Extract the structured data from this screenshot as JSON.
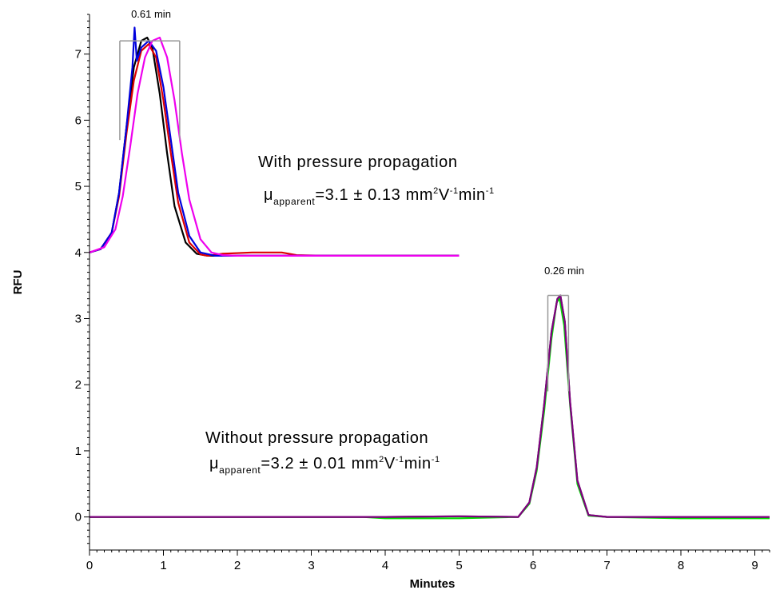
{
  "chart_data": {
    "type": "line",
    "xlabel": "Minutes",
    "ylabel": "RFU",
    "xlim": [
      0,
      9.2
    ],
    "ylim": [
      -0.5,
      7.6
    ],
    "x_ticks": [
      0,
      1,
      2,
      3,
      4,
      5,
      6,
      7,
      8,
      9
    ],
    "y_ticks": [
      0,
      1,
      2,
      3,
      4,
      5,
      6,
      7
    ],
    "grid": false,
    "legend": "none",
    "annotations": {
      "upper_title": "With pressure propagation",
      "upper_mu": "μ",
      "upper_mu_sub": "apparent",
      "upper_eq": "=3.1 ± 0.13 mm",
      "upper_sup1": "2",
      "upper_v": "V",
      "upper_sup2": "-1",
      "upper_min": "min",
      "upper_sup3": "-1",
      "upper_width_label": "0.61 min",
      "lower_title": "Without pressure propagation",
      "lower_mu": "μ",
      "lower_mu_sub": "apparent",
      "lower_eq": "=3.2 ± 0.01 mm",
      "lower_sup1": "2",
      "lower_v": "V",
      "lower_sup2": "-1",
      "lower_min": "min",
      "lower_sup3": "-1",
      "lower_width_label": "0.26 min"
    },
    "brackets": [
      {
        "x_start": 0.41,
        "x_end": 1.22,
        "y": 7.2,
        "y_bottom": 5.7
      },
      {
        "x_start": 6.2,
        "x_end": 6.48,
        "y": 3.35,
        "y_bottom": 1.9
      }
    ],
    "series": [
      {
        "group": "upper",
        "color": "#000000",
        "x": [
          0,
          0.15,
          0.3,
          0.4,
          0.5,
          0.6,
          0.7,
          0.78,
          0.85,
          0.95,
          1.05,
          1.15,
          1.3,
          1.45,
          1.6,
          2.0,
          3.0,
          4.0,
          5.0
        ],
        "y": [
          4.0,
          4.05,
          4.3,
          4.9,
          5.9,
          6.8,
          7.2,
          7.25,
          7.1,
          6.4,
          5.5,
          4.7,
          4.15,
          3.98,
          3.95,
          3.95,
          3.95,
          3.95,
          3.95
        ]
      },
      {
        "group": "upper",
        "color": "#dd0000",
        "x": [
          0,
          0.15,
          0.3,
          0.4,
          0.5,
          0.6,
          0.7,
          0.8,
          0.9,
          1.0,
          1.1,
          1.2,
          1.35,
          1.5,
          1.6,
          1.8,
          2.2,
          2.6,
          2.8,
          3.2,
          4.0,
          5.0
        ],
        "y": [
          4.0,
          4.05,
          4.3,
          4.85,
          5.8,
          6.6,
          7.05,
          7.15,
          6.95,
          6.3,
          5.5,
          4.75,
          4.15,
          3.97,
          3.95,
          3.98,
          4.0,
          4.0,
          3.96,
          3.95,
          3.95,
          3.95
        ]
      },
      {
        "group": "upper",
        "color": "#0000dd",
        "x": [
          0,
          0.15,
          0.3,
          0.4,
          0.5,
          0.58,
          0.61,
          0.64,
          0.7,
          0.8,
          0.9,
          1.0,
          1.1,
          1.2,
          1.35,
          1.5,
          1.7,
          2.0,
          3.0,
          4.0,
          5.0
        ],
        "y": [
          4.0,
          4.05,
          4.3,
          4.9,
          5.9,
          6.8,
          7.4,
          6.9,
          7.1,
          7.2,
          7.05,
          6.5,
          5.7,
          4.9,
          4.25,
          4.0,
          3.95,
          3.95,
          3.95,
          3.95,
          3.95
        ]
      },
      {
        "group": "upper",
        "color": "#ee00ee",
        "x": [
          0,
          0.2,
          0.35,
          0.45,
          0.55,
          0.65,
          0.75,
          0.85,
          0.95,
          1.05,
          1.15,
          1.25,
          1.35,
          1.5,
          1.65,
          1.8,
          2.0,
          3.0,
          4.0,
          5.0
        ],
        "y": [
          4.0,
          4.08,
          4.35,
          4.85,
          5.6,
          6.4,
          6.95,
          7.2,
          7.25,
          6.95,
          6.3,
          5.5,
          4.8,
          4.2,
          4.0,
          3.96,
          3.95,
          3.95,
          3.95,
          3.95
        ]
      },
      {
        "group": "lower",
        "color": "#00dd00",
        "x": [
          0,
          3.7,
          4.0,
          5.0,
          5.8,
          5.95,
          6.05,
          6.15,
          6.25,
          6.32,
          6.36,
          6.42,
          6.5,
          6.6,
          6.75,
          7.0,
          8.0,
          9.2
        ],
        "y": [
          0,
          0,
          -0.02,
          -0.02,
          0.0,
          0.2,
          0.7,
          1.6,
          2.7,
          3.25,
          3.3,
          2.9,
          1.7,
          0.5,
          0.02,
          0.0,
          -0.02,
          -0.02
        ]
      },
      {
        "group": "lower",
        "color": "#333333",
        "x": [
          0,
          3.7,
          4.0,
          5.0,
          5.8,
          5.95,
          6.05,
          6.15,
          6.25,
          6.33,
          6.37,
          6.43,
          6.5,
          6.6,
          6.75,
          7.0,
          8.0,
          9.2
        ],
        "y": [
          0,
          0,
          0.0,
          0.01,
          0.0,
          0.22,
          0.75,
          1.7,
          2.8,
          3.3,
          3.35,
          2.95,
          1.75,
          0.55,
          0.03,
          0.0,
          0.0,
          0.0
        ]
      },
      {
        "group": "lower",
        "color": "#800080",
        "x": [
          0,
          3.7,
          4.0,
          5.0,
          5.8,
          5.95,
          6.05,
          6.15,
          6.25,
          6.33,
          6.37,
          6.43,
          6.5,
          6.6,
          6.75,
          7.0,
          8.0,
          9.2
        ],
        "y": [
          0,
          0,
          0.0,
          0.01,
          0.0,
          0.22,
          0.75,
          1.7,
          2.8,
          3.3,
          3.35,
          2.95,
          1.75,
          0.55,
          0.03,
          0.0,
          0.0,
          0.0
        ]
      }
    ]
  }
}
